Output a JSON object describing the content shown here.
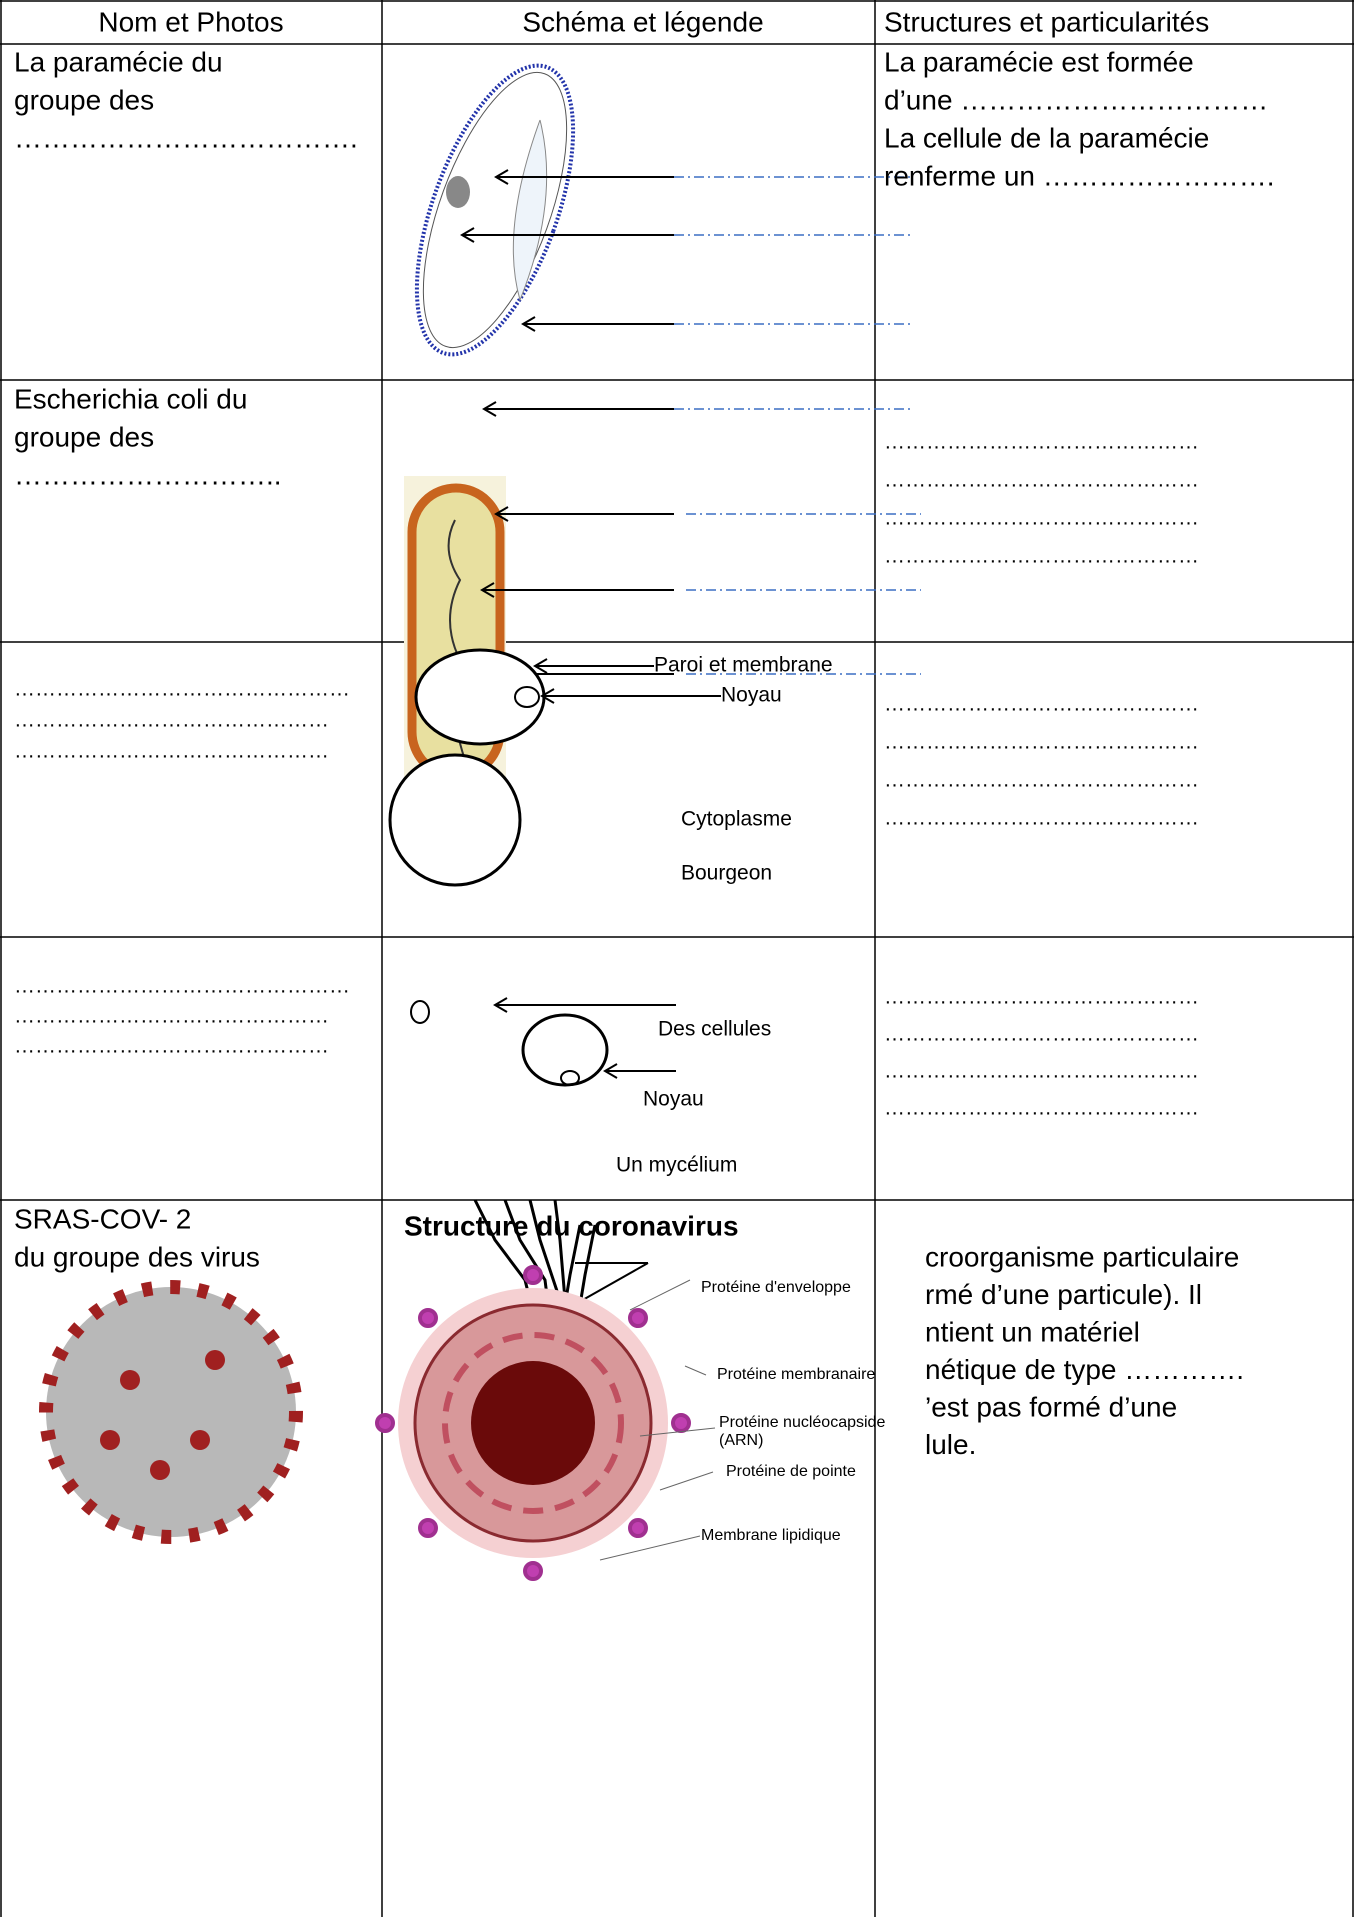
{
  "header": [
    "Nom et Photos",
    "Schéma et légende",
    "Structures et particularités"
  ],
  "rows": [
    {
      "name": [
        "La paramécie du",
        "groupe des",
        "………………………………."
      ],
      "structure": [
        "La paramécie est formée",
        "d’une ……………………………",
        "La cellule de la paramécie",
        "renferme un ……………………."
      ]
    },
    {
      "name": [
        "Escherichia coli du",
        "groupe des",
        "……………………….."
      ],
      "structure": [
        "………………………………………",
        "………………………………………",
        "………………………………………",
        "………………………………………"
      ]
    },
    {
      "name": [
        "…………………………………………",
        "………………………………………",
        "………………………………………"
      ],
      "legend": [
        "Paroi et membrane",
        "Noyau",
        "Cytoplasme",
        "Bourgeon"
      ],
      "structure": [
        "………………………………………",
        "………………………………………",
        "………………………………………",
        "………………………………………"
      ]
    },
    {
      "name": [
        "…………………………………………",
        "………………………………………",
        "………………………………………"
      ],
      "legend": [
        "Des cellules",
        "Noyau",
        "Un mycélium"
      ],
      "structure": [
        "………………………………………",
        "………………………………………",
        "………………………………………",
        "………………………………………"
      ]
    },
    {
      "name": [
        "SRAS-COV- 2",
        "du groupe des virus"
      ],
      "legend": [
        "Structure du coronavirus",
        "Protéine d'enveloppe",
        "Protéine membranaire",
        "Protéine nucléocapside",
        "(ARN)",
        "Protéine de pointe",
        "Membrane lipidique"
      ],
      "structure": [
        "croorganisme particulaire",
        "rmé d’une particule). Il",
        "ntient un matériel",
        "nétique de type ………….",
        "’est pas formé d’une",
        "lule."
      ]
    }
  ]
}
